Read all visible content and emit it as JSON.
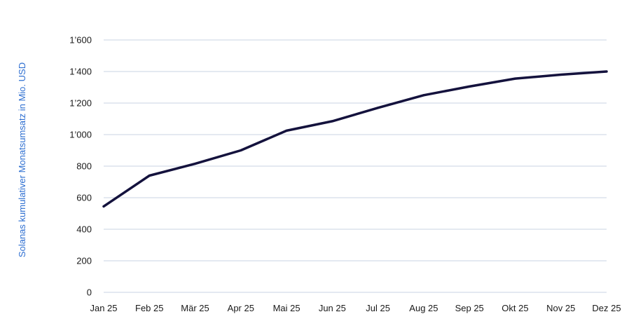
{
  "chart_data": {
    "type": "line",
    "title": "",
    "xlabel": "",
    "ylabel": "Solanas kumulativer Monatsumsatz in Mio. USD",
    "categories": [
      "Jan 25",
      "Feb 25",
      "Mär 25",
      "Apr 25",
      "Mai 25",
      "Jun 25",
      "Jul 25",
      "Aug 25",
      "Sep 25",
      "Okt 25",
      "Nov 25",
      "Dez 25"
    ],
    "series": [
      {
        "values": [
          545,
          740,
          815,
          900,
          1025,
          1085,
          1170,
          1250,
          1305,
          1355,
          1380,
          1400
        ]
      }
    ],
    "ylim": [
      0,
      1600
    ],
    "yticks": [
      0,
      200,
      400,
      600,
      800,
      1000,
      1200,
      1400,
      1600
    ],
    "ytick_labels": [
      "0",
      "200",
      "400",
      "600",
      "800",
      "1’000",
      "1’200",
      "1’400",
      "1’600"
    ],
    "grid": true,
    "colors": {
      "line": "#14123d",
      "grid": "#c9d3e3",
      "axis_title": "#2e6fd1"
    }
  }
}
